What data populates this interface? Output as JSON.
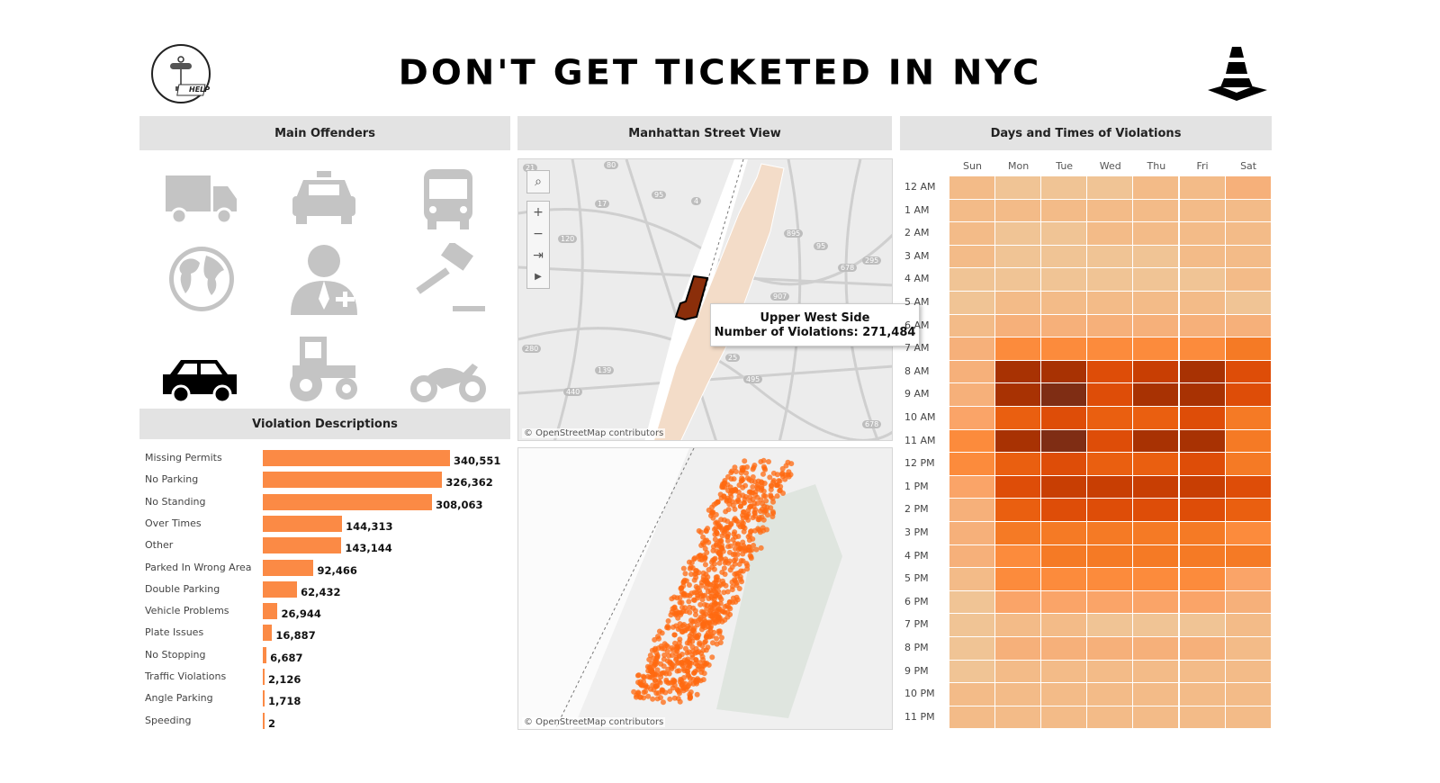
{
  "header": {
    "title": "DON'T GET TICKETED IN NYC",
    "help_label": "HELP",
    "left_icon": "help-signpost-icon",
    "right_icon": "traffic-cone-icon"
  },
  "main_offenders": {
    "title": "Main Offenders",
    "icons": [
      {
        "name": "truck-icon",
        "selected": false
      },
      {
        "name": "taxi-icon",
        "selected": false
      },
      {
        "name": "bus-icon",
        "selected": false
      },
      {
        "name": "globe-icon",
        "selected": false
      },
      {
        "name": "doctor-icon",
        "selected": false
      },
      {
        "name": "gavel-icon",
        "selected": false
      },
      {
        "name": "car-icon",
        "selected": true
      },
      {
        "name": "tractor-icon",
        "selected": false
      },
      {
        "name": "motorcycle-icon",
        "selected": false
      }
    ],
    "colors": {
      "inactive": "#c4c4c4",
      "selected": "#000000"
    }
  },
  "violation_descriptions": {
    "title": "Violation Descriptions",
    "bar_color": "#fb8a45",
    "rows": [
      {
        "label": "Missing Permits",
        "value": 340551,
        "display": "340,551"
      },
      {
        "label": "No Parking",
        "value": 326362,
        "display": "326,362"
      },
      {
        "label": "No Standing",
        "value": 308063,
        "display": "308,063"
      },
      {
        "label": "Over Times",
        "value": 144313,
        "display": "144,313"
      },
      {
        "label": "Other",
        "value": 143144,
        "display": "143,144"
      },
      {
        "label": "Parked In Wrong Area",
        "value": 92466,
        "display": "92,466"
      },
      {
        "label": "Double Parking",
        "value": 62432,
        "display": "62,432"
      },
      {
        "label": "Vehicle Problems",
        "value": 26944,
        "display": "26,944"
      },
      {
        "label": "Plate Issues",
        "value": 16887,
        "display": "16,887"
      },
      {
        "label": "No Stopping",
        "value": 6687,
        "display": "6,687"
      },
      {
        "label": "Traffic Violations",
        "value": 2126,
        "display": "2,126"
      },
      {
        "label": "Angle Parking",
        "value": 1718,
        "display": "1,718"
      },
      {
        "label": "Speeding",
        "value": 2,
        "display": "2"
      }
    ]
  },
  "street_view": {
    "title": "Manhattan Street View",
    "credit": "© OpenStreetMap contributors",
    "road_labels": [
      "21",
      "80",
      "17",
      "95",
      "4",
      "120",
      "895",
      "95",
      "678",
      "295",
      "907",
      "280",
      "25",
      "139",
      "440",
      "495",
      "678"
    ],
    "controls": {
      "search": "⌕",
      "zoom_in": "+",
      "zoom_out": "−",
      "pin": "⇥",
      "play": "▶"
    },
    "tooltip": {
      "neighborhood": "Upper West Side",
      "line2": "Number of Violations: 271,484"
    },
    "highlight_color": "#8b2e0a",
    "detail_credit": "© OpenStreetMap contributors",
    "point_color": "#ff6a10"
  },
  "days_times": {
    "title": "Days and Times of Violations",
    "days": [
      "Sun",
      "Mon",
      "Tue",
      "Wed",
      "Thu",
      "Fri",
      "Sat"
    ],
    "hours": [
      "12 AM",
      "1 AM",
      "2 AM",
      "3 AM",
      "4 AM",
      "5 AM",
      "6 AM",
      "7 AM",
      "8 AM",
      "9 AM",
      "10 AM",
      "11 AM",
      "12 PM",
      "1 PM",
      "2 PM",
      "3 PM",
      "4 PM",
      "5 PM",
      "6 PM",
      "7 PM",
      "8 PM",
      "9 PM",
      "10 PM",
      "11 PM"
    ],
    "palette": [
      "#f0c495",
      "#f3bb88",
      "#f6b07a",
      "#faa468",
      "#fc8b3c",
      "#f57a25",
      "#ea5f10",
      "#de4d08",
      "#c83e03",
      "#a83203",
      "#7f2d14"
    ],
    "intensity_levels": [
      [
        2,
        1,
        1,
        1,
        2,
        2,
        3
      ],
      [
        2,
        2,
        2,
        2,
        2,
        2,
        2
      ],
      [
        2,
        1,
        1,
        2,
        2,
        2,
        2
      ],
      [
        2,
        1,
        1,
        1,
        1,
        2,
        2
      ],
      [
        1,
        1,
        1,
        1,
        1,
        1,
        2
      ],
      [
        1,
        2,
        2,
        2,
        2,
        2,
        1
      ],
      [
        2,
        3,
        3,
        3,
        3,
        3,
        3
      ],
      [
        3,
        5,
        5,
        5,
        5,
        5,
        6
      ],
      [
        3,
        10,
        10,
        8,
        9,
        10,
        8
      ],
      [
        3,
        10,
        11,
        8,
        10,
        10,
        8
      ],
      [
        4,
        7,
        8,
        7,
        7,
        8,
        6
      ],
      [
        5,
        10,
        11,
        8,
        10,
        10,
        6
      ],
      [
        5,
        7,
        8,
        7,
        7,
        8,
        6
      ],
      [
        4,
        8,
        9,
        9,
        9,
        9,
        8
      ],
      [
        3,
        7,
        8,
        8,
        8,
        8,
        7
      ],
      [
        3,
        6,
        6,
        6,
        6,
        6,
        5
      ],
      [
        3,
        5,
        6,
        6,
        6,
        6,
        6
      ],
      [
        2,
        5,
        5,
        5,
        5,
        5,
        4
      ],
      [
        1,
        4,
        4,
        4,
        4,
        4,
        3
      ],
      [
        1,
        2,
        2,
        1,
        1,
        1,
        2
      ],
      [
        1,
        3,
        3,
        3,
        3,
        3,
        2
      ],
      [
        1,
        2,
        2,
        2,
        2,
        2,
        2
      ],
      [
        2,
        2,
        2,
        2,
        2,
        2,
        2
      ],
      [
        2,
        2,
        2,
        2,
        2,
        2,
        2
      ]
    ]
  }
}
